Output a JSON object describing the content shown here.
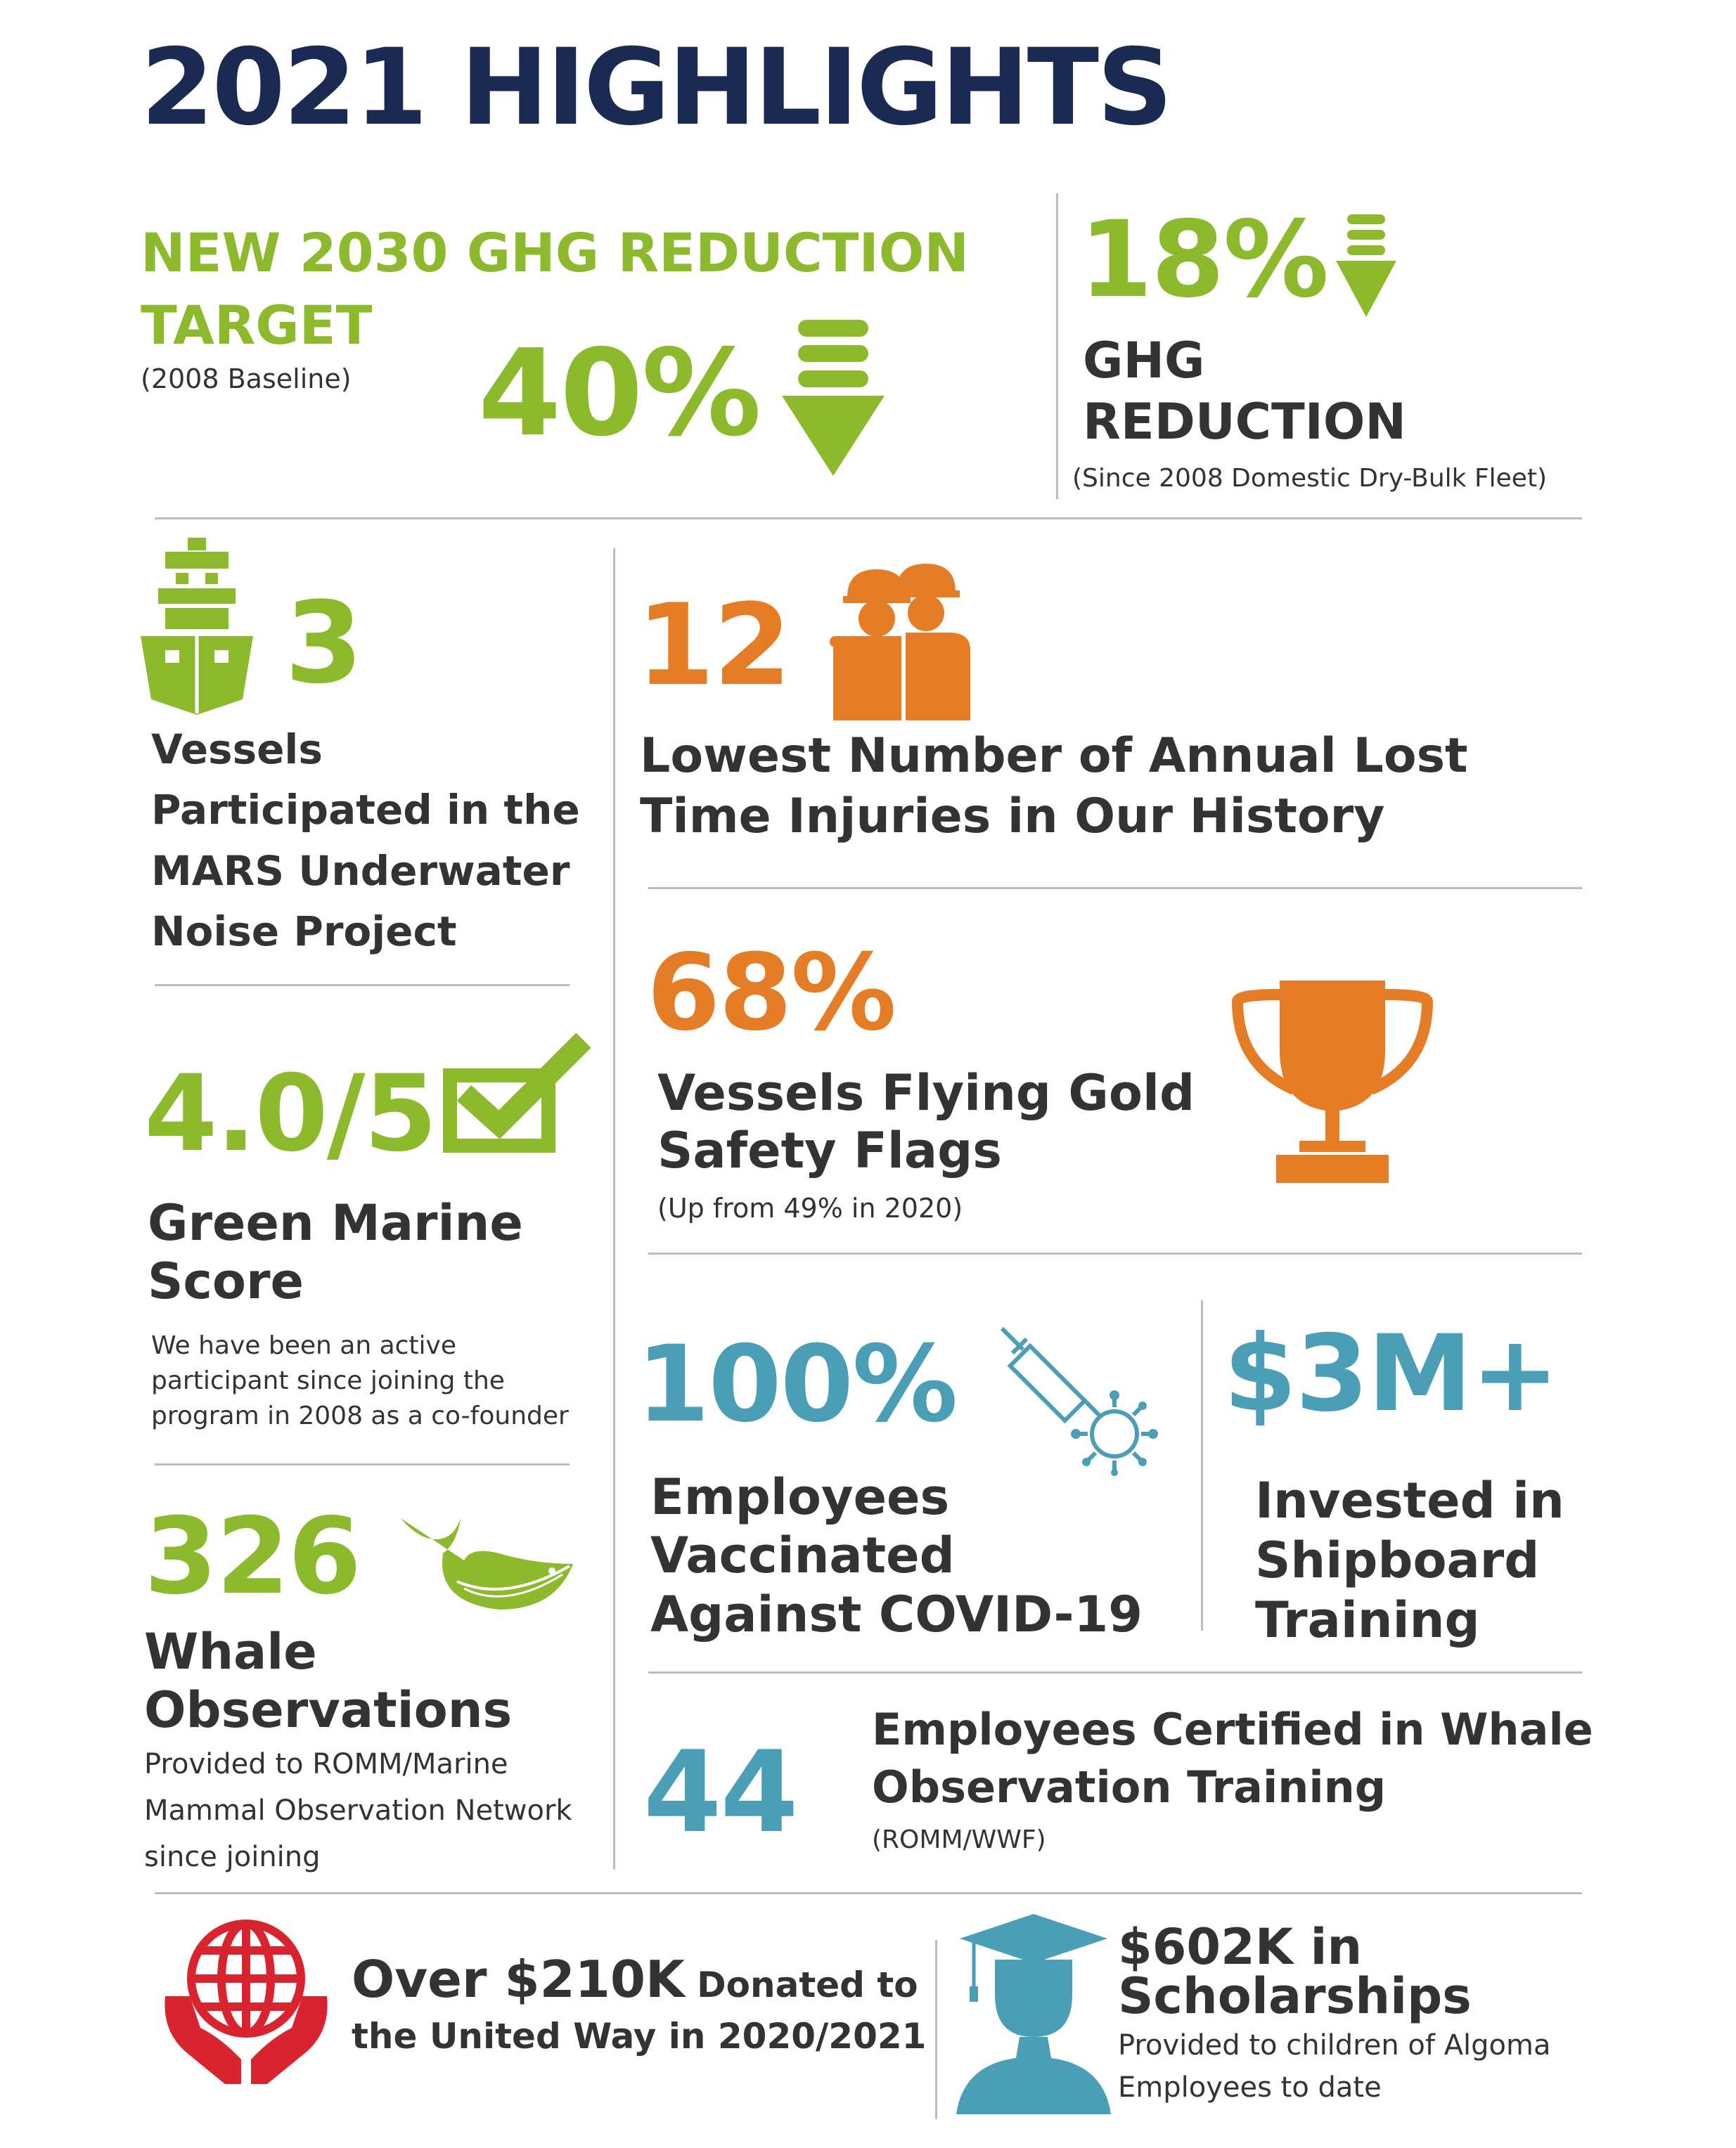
{
  "page_title": "2021 HIGHLIGHTS",
  "ghg_target": {
    "heading_line1": "NEW 2030 GHG REDUCTION",
    "heading_line2": "TARGET",
    "note": "(2008 Baseline)",
    "value": "40%"
  },
  "ghg_reduction": {
    "value": "18%",
    "label_line1": "GHG",
    "label_line2": "REDUCTION",
    "note": "(Since 2008 Domestic Dry-Bulk Fleet)"
  },
  "vessels_mars": {
    "value": "3",
    "lines": [
      "Vessels",
      "Participated in the",
      "MARS Underwater",
      "Noise Project"
    ]
  },
  "lost_time": {
    "value": "12",
    "line1": "Lowest Number of Annual Lost",
    "line2": "Time Injuries in Our History"
  },
  "green_marine": {
    "value": "4.0/5",
    "label_line1": "Green Marine",
    "label_line2": "Score",
    "desc": [
      "We have been an active",
      "participant since joining the",
      "program in 2008 as a co-founder"
    ]
  },
  "gold_flags": {
    "value": "68%",
    "label_line1": "Vessels Flying Gold",
    "label_line2": "Safety Flags",
    "note": "(Up from 49% in 2020)"
  },
  "vaccinated": {
    "value": "100%",
    "lines": [
      "Employees",
      "Vaccinated",
      "Against COVID-19"
    ]
  },
  "training": {
    "value": "$3M+",
    "lines": [
      "Invested in",
      "Shipboard",
      "Training"
    ]
  },
  "whales": {
    "value": "326",
    "label_line1": "Whale",
    "label_line2": "Observations",
    "desc": [
      "Provided to ROMM/Marine",
      "Mammal Observation Network",
      "since joining"
    ]
  },
  "whale_cert": {
    "value": "44",
    "line1": "Employees Certified in Whale",
    "line2": "Observation Training",
    "note": "(ROMM/WWF)"
  },
  "united_way": {
    "amount": "Over $210K",
    "rest": " Donated to",
    "line2": "the United Way in 2020/2021"
  },
  "scholarships": {
    "line1": "$602K in",
    "line2": "Scholarships",
    "desc1": "Provided to children of Algoma",
    "desc2": "Employees to date"
  },
  "colors": {
    "navy": "#1a2a53",
    "green": "#8dba2d",
    "orange": "#e57c26",
    "teal": "#4a9fb6",
    "red": "#d9232f"
  },
  "icons": [
    "down-arrow-icon",
    "ship-icon",
    "workers-icon",
    "checkbox-icon",
    "trophy-icon",
    "syringe-virus-icon",
    "whale-icon",
    "globe-hands-icon",
    "graduate-icon"
  ]
}
